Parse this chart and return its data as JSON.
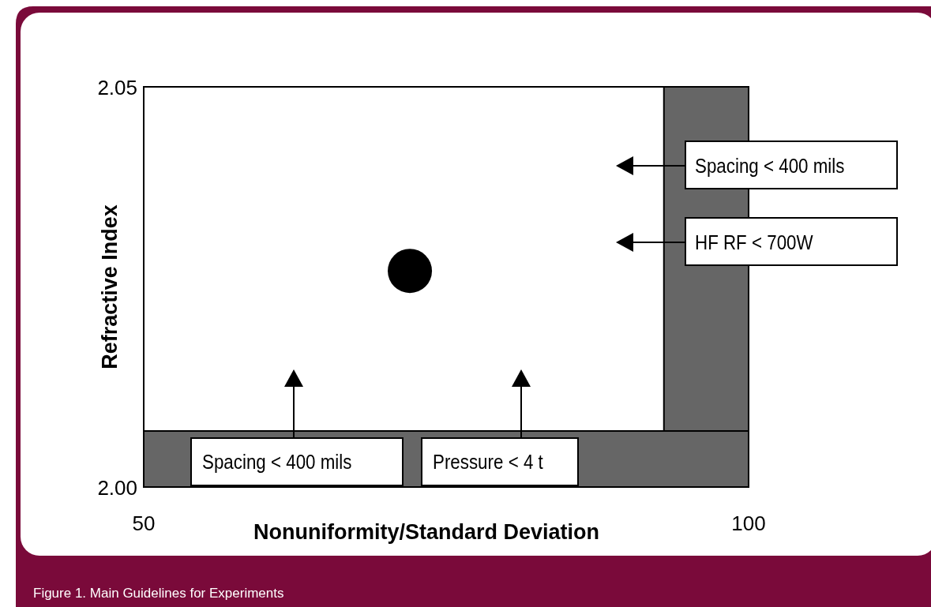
{
  "chart_data": {
    "type": "scatter",
    "xlabel": "Nonuniformity/Standard Deviation",
    "ylabel": "Refractive Index",
    "xlim": [
      50,
      100
    ],
    "ylim": [
      2.0,
      2.05
    ],
    "xticks": [
      50,
      100
    ],
    "yticks": [
      {
        "value": 2.0,
        "label": "2.00"
      },
      2.05
    ],
    "series": [
      {
        "color": "#000000",
        "x": [
          72
        ],
        "values": [
          2.027
        ]
      }
    ],
    "marker": "circle",
    "grid": false,
    "bands": [
      {
        "axis": "x",
        "from": 93,
        "to": 100,
        "color": "#666666"
      },
      {
        "axis": "y",
        "from": 2.0,
        "to": 2.007,
        "color": "#666666"
      }
    ],
    "annotations": [
      "Spacing < 400 mils",
      "HF RF < 700W",
      "Spacing < 400 mils",
      "Pressure < 4 t",
      "Figure 1. Main Guidelines for Experiments"
    ]
  }
}
